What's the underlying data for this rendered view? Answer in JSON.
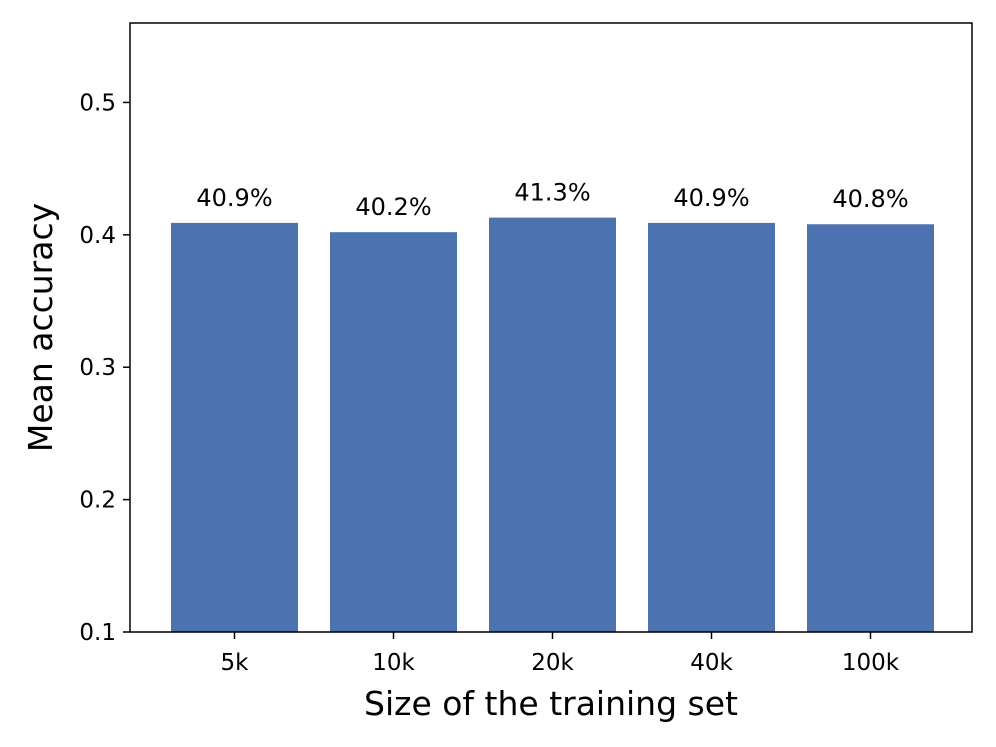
{
  "chart_data": {
    "type": "bar",
    "categories": [
      "5k",
      "10k",
      "20k",
      "40k",
      "100k"
    ],
    "values": [
      0.409,
      0.402,
      0.413,
      0.409,
      0.408
    ],
    "data_labels": [
      "40.9%",
      "40.2%",
      "41.3%",
      "40.9%",
      "40.8%"
    ],
    "xlabel": "Size of the training set",
    "ylabel": "Mean accuracy",
    "ylim": [
      0.1,
      0.56
    ],
    "yticks": [
      0.1,
      0.2,
      0.3,
      0.4,
      0.5
    ],
    "ytick_labels": [
      "0.1",
      "0.2",
      "0.3",
      "0.4",
      "0.5"
    ],
    "grid": false,
    "legend": "none",
    "bar_color": "#4c72b0"
  }
}
